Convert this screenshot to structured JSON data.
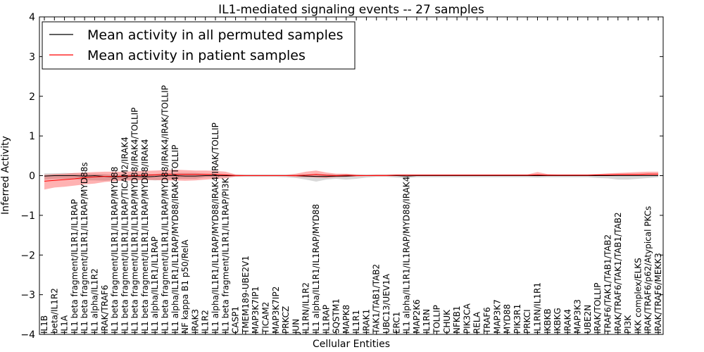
{
  "chart_data": {
    "type": "line",
    "title": "IL1-mediated signaling events -- 27 samples",
    "xlabel": "Cellular Entities",
    "ylabel": "Inferred Activity",
    "ylim": [
      -4,
      4
    ],
    "yticks": [
      -4,
      -3,
      -2,
      -1,
      0,
      1,
      2,
      3,
      4
    ],
    "ytick_labels": [
      "−4",
      "−3",
      "−2",
      "−1",
      "0",
      "1",
      "2",
      "3",
      "4"
    ],
    "grid": false,
    "legend_position": "top-left",
    "categories": [
      "IL1B",
      "beta/IL1R2",
      "IL1A",
      "IL1 beta fragment/IL1R1/IL1RAP",
      "IL1 beta fragment/IL1R1/IL1RAP/MYD88s",
      "IL1 alpha/IL1R2",
      "IRAK/TRAF6",
      "IL1 beta fragment/IL1R1/IL1RAP/MYD88",
      "IL1 beta fragment/IL1R1/IL1RAP/TICAM2/IRAK4",
      "IL1 beta fragment/IL1R1/IL1RAP/MYD88/IRAK4/TOLLIP",
      "IL1 beta fragment/IL1R1/IL1RAP/MYD88/IRAK4",
      "IL1 alpha/IL1R1/IL1RAP",
      "IL1 beta fragment/IL1R1/IL1RAP/MYD88/IRAK4/IRAK/TOLLIP",
      "IL1 alpha/IL1R1/IL1RAP/MYD88/IRAK4/TOLLIP",
      "NF kappa B1 p50/RelA",
      "IRAK3",
      "IL1R2",
      "IL1 alpha/IL1R1/IL1RAP/MYD88/IRAK4/IRAK/TOLLIP",
      "IL1 beta fragment/IL1R1/IL1RAP/PI3K",
      "CASP1",
      "TMEM189-UBE2V1",
      "MAP3K7IP1",
      "TICAM2",
      "MAP3K7IP2",
      "PRKCZ",
      "JUN",
      "IL1RN/IL1R2",
      "IL1 alpha/IL1R1/IL1RAP/MYD88",
      "IL1RAP",
      "SQSTM1",
      "MAPK8",
      "IL1R1",
      "IRAK1",
      "TAK1/TAB1/TAB2",
      "UBC13/UEV1A",
      "ERC1",
      "IL1 alpha/IL1R1/IL1RAP/MYD88/IRAK4",
      "MAP2K6",
      "IL1RN",
      "TOLLIP",
      "CHUK",
      "NFKB1",
      "PIK3CA",
      "RELA",
      "TRAF6",
      "MAP3K7",
      "MYD88",
      "PIK3R1",
      "PRKCI",
      "IL1RN/IL1R1",
      "IKBKB",
      "IKBKG",
      "IRAK4",
      "MAP3K3",
      "UBE2N",
      "IRAK/TOLLIP",
      "TRAF6/TAK1/TAB1/TAB2",
      "IRAK/TRAF6/TAK1/TAB1/TAB2",
      "PI3K",
      "IKK complex/ELKS",
      "IRAK/TRAF6/p62/Atypical PKCs",
      "IRAK/TRAF6/MEKK3"
    ],
    "series": [
      {
        "name": "Mean activity in all permuted samples",
        "color": "#000000",
        "values": [
          -0.01,
          0.0,
          0.0,
          0.0,
          -0.01,
          0.0,
          -0.02,
          -0.03,
          -0.02,
          -0.02,
          -0.03,
          -0.02,
          0.0,
          0.0,
          -0.01,
          -0.01,
          0.0,
          0.0,
          0.0,
          0.0,
          0.0,
          0.0,
          0.0,
          0.0,
          0.0,
          0.0,
          -0.01,
          -0.02,
          -0.02,
          -0.01,
          -0.01,
          0.0,
          0.0,
          0.0,
          0.0,
          0.0,
          -0.01,
          0.0,
          0.0,
          0.0,
          0.0,
          0.0,
          0.0,
          0.0,
          0.0,
          0.0,
          0.0,
          0.0,
          0.0,
          0.0,
          0.0,
          0.0,
          0.0,
          0.0,
          0.0,
          0.0,
          0.0,
          0.0,
          0.0,
          0.0,
          0.0,
          0.0
        ],
        "band_low": [
          -0.1,
          -0.08,
          -0.08,
          -0.09,
          -0.12,
          -0.12,
          -0.13,
          -0.11,
          -0.1,
          -0.1,
          -0.1,
          -0.12,
          -0.1,
          -0.08,
          -0.08,
          -0.08,
          -0.04,
          -0.03,
          -0.03,
          -0.03,
          -0.03,
          -0.03,
          -0.03,
          -0.03,
          -0.04,
          -0.06,
          -0.1,
          -0.15,
          -0.1,
          -0.08,
          -0.1,
          -0.08,
          -0.05,
          -0.03,
          -0.03,
          -0.05,
          -0.06,
          -0.04,
          -0.04,
          -0.04,
          -0.04,
          -0.04,
          -0.04,
          -0.04,
          -0.04,
          -0.04,
          -0.04,
          -0.04,
          -0.04,
          -0.05,
          -0.04,
          -0.04,
          -0.04,
          -0.04,
          -0.04,
          -0.06,
          -0.07,
          -0.1,
          -0.1,
          -0.08,
          -0.06,
          -0.04
        ],
        "band_high": [
          0.06,
          0.06,
          0.07,
          0.06,
          0.05,
          0.05,
          0.04,
          0.02,
          0.03,
          0.04,
          0.04,
          0.04,
          0.06,
          0.07,
          0.07,
          0.07,
          0.05,
          0.04,
          0.03,
          0.03,
          0.03,
          0.03,
          0.03,
          0.03,
          0.03,
          0.03,
          0.03,
          0.03,
          0.03,
          0.03,
          0.03,
          0.03,
          0.03,
          0.03,
          0.03,
          0.03,
          0.03,
          0.03,
          0.03,
          0.03,
          0.03,
          0.03,
          0.03,
          0.03,
          0.03,
          0.03,
          0.03,
          0.03,
          0.03,
          0.03,
          0.03,
          0.03,
          0.03,
          0.03,
          0.03,
          0.03,
          0.03,
          0.03,
          0.03,
          0.03,
          0.03,
          0.03
        ]
      },
      {
        "name": "Mean activity in patient samples",
        "color": "#ff0000",
        "values": [
          -0.14,
          -0.12,
          -0.1,
          -0.08,
          -0.05,
          -0.03,
          -0.02,
          -0.02,
          -0.01,
          0.0,
          0.01,
          0.02,
          0.03,
          0.03,
          0.03,
          0.03,
          0.03,
          0.03,
          0.02,
          0.0,
          0.0,
          0.0,
          0.0,
          0.0,
          0.0,
          0.0,
          0.01,
          0.03,
          0.01,
          0.0,
          0.01,
          0.0,
          0.0,
          0.0,
          0.0,
          0.01,
          0.01,
          0.01,
          0.01,
          0.01,
          0.01,
          0.01,
          0.01,
          0.01,
          0.01,
          0.01,
          0.01,
          0.01,
          0.01,
          0.02,
          0.01,
          0.01,
          0.01,
          0.01,
          0.01,
          0.02,
          0.02,
          0.03,
          0.03,
          0.03,
          0.04,
          0.04
        ],
        "band_low": [
          -0.35,
          -0.3,
          -0.28,
          -0.25,
          -0.22,
          -0.2,
          -0.16,
          -0.14,
          -0.13,
          -0.12,
          -0.11,
          -0.11,
          -0.12,
          -0.12,
          -0.13,
          -0.12,
          -0.1,
          -0.08,
          -0.07,
          -0.02,
          -0.01,
          -0.01,
          -0.01,
          -0.01,
          -0.01,
          -0.03,
          -0.04,
          -0.05,
          -0.06,
          -0.04,
          -0.03,
          -0.02,
          -0.01,
          -0.01,
          -0.01,
          -0.01,
          0.0,
          0.0,
          0.0,
          0.0,
          0.0,
          0.0,
          0.0,
          0.0,
          0.0,
          0.0,
          0.0,
          0.0,
          0.0,
          -0.01,
          0.0,
          0.0,
          0.0,
          0.0,
          0.0,
          0.0,
          0.0,
          0.0,
          0.0,
          0.0,
          0.0,
          0.0
        ],
        "band_high": [
          0.02,
          0.04,
          0.05,
          0.07,
          0.08,
          0.09,
          0.1,
          0.1,
          0.1,
          0.11,
          0.12,
          0.13,
          0.14,
          0.15,
          0.14,
          0.13,
          0.13,
          0.12,
          0.1,
          0.03,
          0.02,
          0.02,
          0.02,
          0.02,
          0.02,
          0.05,
          0.1,
          0.13,
          0.08,
          0.05,
          0.05,
          0.03,
          0.02,
          0.03,
          0.03,
          0.03,
          0.03,
          0.03,
          0.03,
          0.03,
          0.03,
          0.03,
          0.03,
          0.03,
          0.03,
          0.03,
          0.03,
          0.03,
          0.03,
          0.09,
          0.04,
          0.03,
          0.03,
          0.03,
          0.03,
          0.04,
          0.06,
          0.07,
          0.08,
          0.09,
          0.1,
          0.1
        ]
      }
    ]
  }
}
